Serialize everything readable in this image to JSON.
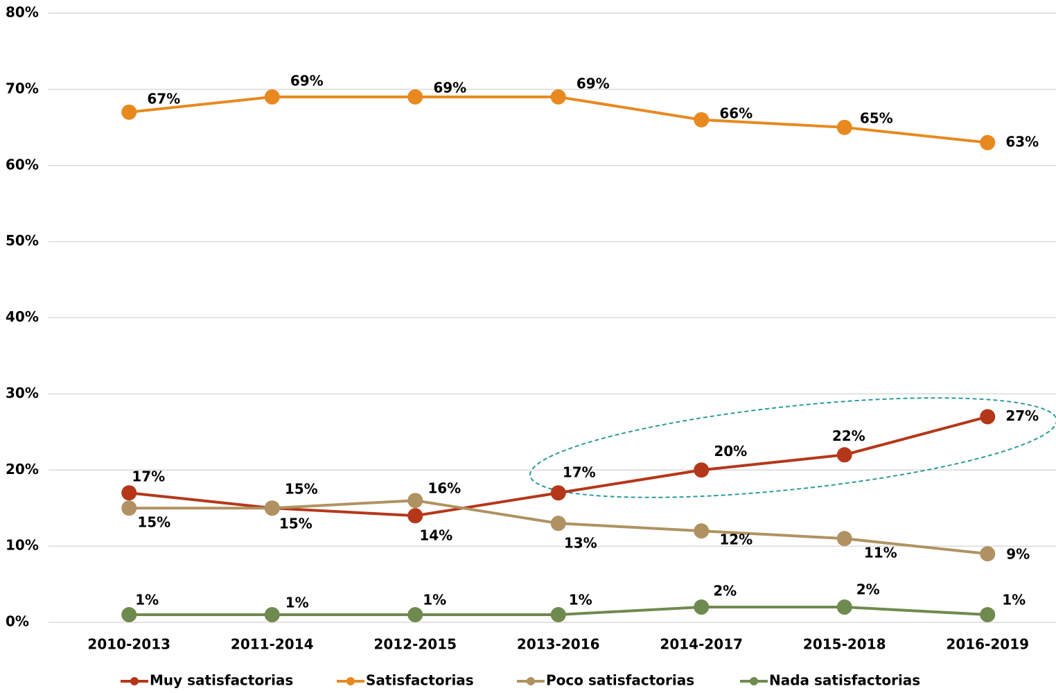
{
  "chart_data": {
    "type": "line",
    "categories": [
      "2010-2013",
      "2011-2014",
      "2012-2015",
      "2013-2016",
      "2014-2017",
      "2015-2018",
      "2016-2019"
    ],
    "series": [
      {
        "name": "Muy satisfactorias",
        "color": "#b5371a",
        "values": [
          17,
          15,
          14,
          17,
          20,
          22,
          27
        ],
        "value_labels": [
          "17%",
          "15%",
          "14%",
          "17%",
          "20%",
          "22%",
          "27%"
        ]
      },
      {
        "name": "Satisfactorias",
        "color": "#e8891f",
        "values": [
          67,
          69,
          69,
          69,
          66,
          65,
          63
        ],
        "value_labels": [
          "67%",
          "69%",
          "69%",
          "69%",
          "66%",
          "65%",
          "63%"
        ]
      },
      {
        "name": "Poco satisfactorias",
        "color": "#b09262",
        "values": [
          15,
          15,
          16,
          13,
          12,
          11,
          9
        ],
        "value_labels": [
          "15%",
          "15%",
          "16%",
          "13%",
          "12%",
          "11%",
          "9%"
        ]
      },
      {
        "name": "Nada satisfactorias",
        "color": "#6f8a4e",
        "values": [
          1,
          1,
          1,
          1,
          2,
          2,
          1
        ],
        "value_labels": [
          "1%",
          "1%",
          "1%",
          "1%",
          "2%",
          "2%",
          "1%"
        ]
      }
    ],
    "ylim": [
      0,
      80
    ],
    "yticks": [
      {
        "value": 0,
        "label": "0%"
      },
      {
        "value": 10,
        "label": "10%"
      },
      {
        "value": 20,
        "label": "20%"
      },
      {
        "value": 30,
        "label": "30%"
      },
      {
        "value": 40,
        "label": "40%"
      },
      {
        "value": 50,
        "label": "50%"
      },
      {
        "value": 60,
        "label": "60%"
      },
      {
        "value": 70,
        "label": "70%"
      },
      {
        "value": 80,
        "label": "80%"
      }
    ],
    "grid": true,
    "legend": "bottom"
  }
}
